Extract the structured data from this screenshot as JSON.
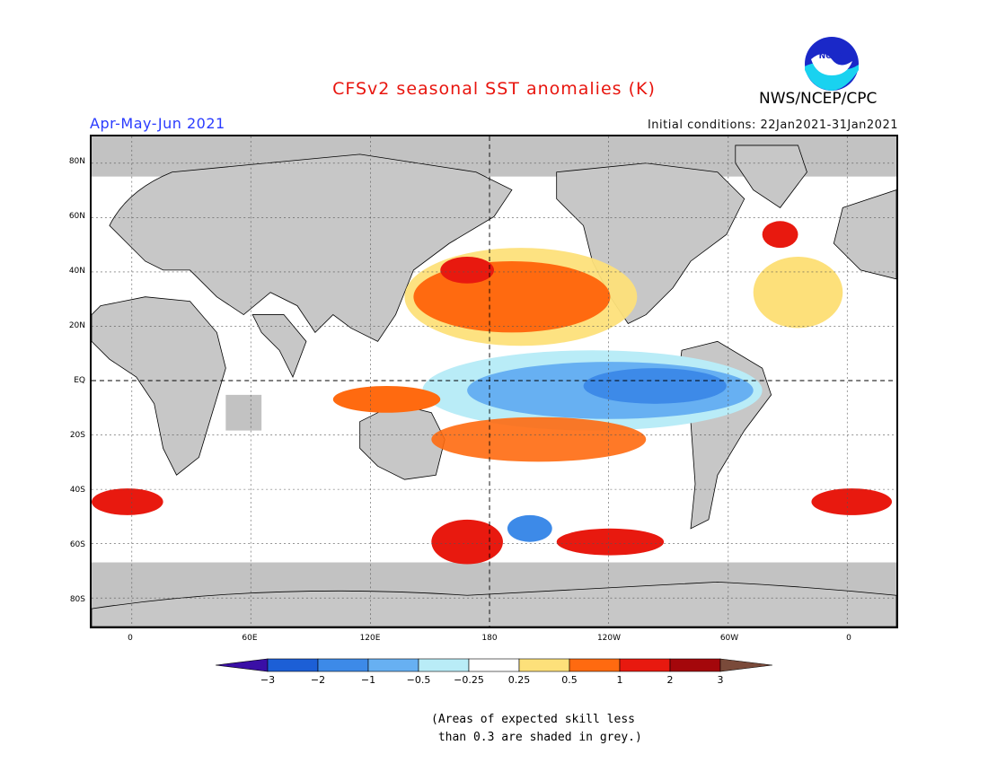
{
  "title": "CFSv2 seasonal SST anomalies (K)",
  "agency": "NWS/NCEP/CPC",
  "season": "Apr-May-Jun 2021",
  "initial_conditions": "Initial conditions: 22Jan2021-31Jan2021",
  "lat_labels": [
    "80N",
    "60N",
    "40N",
    "20N",
    "EQ",
    "20S",
    "40S",
    "60S",
    "80S"
  ],
  "lon_labels": [
    "0",
    "60E",
    "120E",
    "180",
    "120W",
    "60W",
    "0"
  ],
  "colorbar": {
    "labels": [
      "−3",
      "−2",
      "−1",
      "−0.5",
      "−0.25",
      "0.25",
      "0.5",
      "1",
      "2",
      "3"
    ],
    "colors": [
      "#3a0fa6",
      "#1c5fd6",
      "#3d8ae8",
      "#67b0f2",
      "#b9ecf7",
      "#ffffff",
      "#fde07a",
      "#ff6a10",
      "#e8190f",
      "#a4070b",
      "#7a4a3a"
    ]
  },
  "note_line1": "(Areas of expected skill less",
  "note_line2": " than 0.3 are shaded in grey.)",
  "colors": {
    "land": "#c7c7c7",
    "grey_low_skill": "#c2c2c2",
    "title": "#e8150e",
    "season": "#2a3bff"
  }
}
